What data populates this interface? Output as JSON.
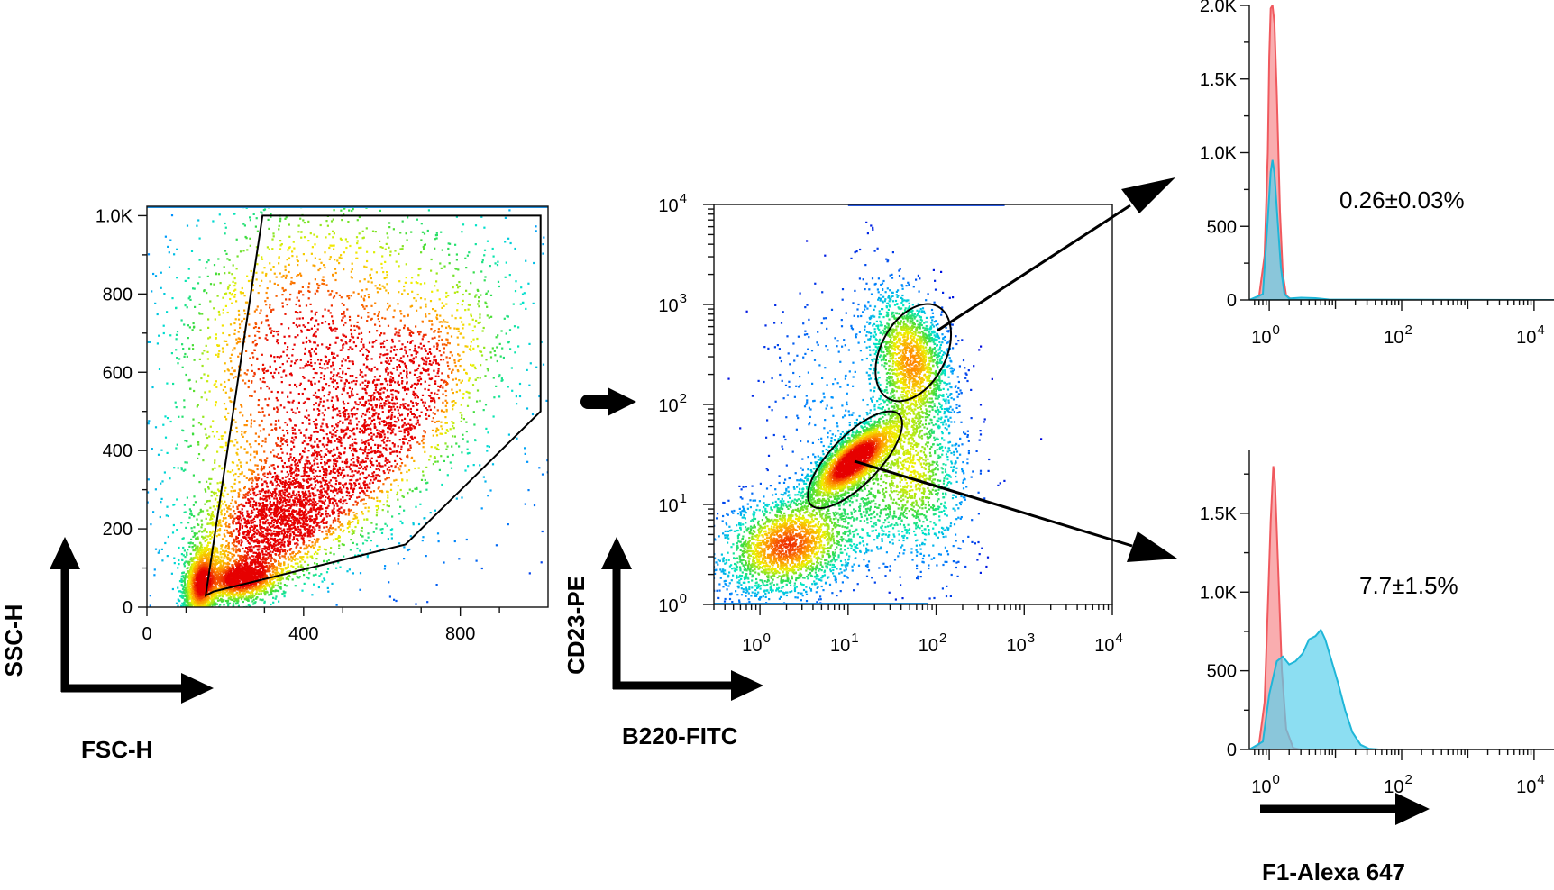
{
  "chart_data": [
    {
      "id": "scatter-fsc-ssc",
      "type": "scatter",
      "xlabel": "FSC-H",
      "ylabel": "SSC-H",
      "xlim": [
        0,
        1024
      ],
      "ylim": [
        0,
        1024
      ],
      "x_ticks": [
        {
          "value": 0,
          "label": "0"
        },
        {
          "value": 400,
          "label": "400"
        },
        {
          "value": 800,
          "label": "800"
        }
      ],
      "y_ticks": [
        {
          "value": 0,
          "label": "0"
        },
        {
          "value": 200,
          "label": "200"
        },
        {
          "value": 400,
          "label": "400"
        },
        {
          "value": 600,
          "label": "600"
        },
        {
          "value": 800,
          "label": "800"
        },
        {
          "value": 1000,
          "label": "1.0K"
        }
      ],
      "gate": [
        [
          150,
          30
        ],
        [
          295,
          1000
        ],
        [
          1005,
          1000
        ],
        [
          1005,
          500
        ],
        [
          660,
          160
        ],
        [
          170,
          40
        ]
      ],
      "density_clusters": [
        {
          "x": 135,
          "y": 60
        },
        {
          "x": 240,
          "y": 75
        },
        {
          "x": 320,
          "y": 230
        },
        {
          "x": 560,
          "y": 420
        },
        {
          "x": 380,
          "y": 700
        }
      ]
    },
    {
      "id": "scatter-b220-cd23",
      "type": "scatter",
      "xlabel": "B220-FITC",
      "ylabel": "CD23-PE",
      "xscale": "log",
      "yscale": "log",
      "xlim": [
        0.3,
        10000
      ],
      "ylim": [
        1,
        10000
      ],
      "x_ticks": [
        {
          "base": "10",
          "exp": "0",
          "value": 1
        },
        {
          "base": "10",
          "exp": "1",
          "value": 10
        },
        {
          "base": "10",
          "exp": "2",
          "value": 100
        },
        {
          "base": "10",
          "exp": "3",
          "value": 1000
        },
        {
          "base": "10",
          "exp": "4",
          "value": 10000
        }
      ],
      "y_ticks": [
        {
          "base": "10",
          "exp": "0",
          "value": 1
        },
        {
          "base": "10",
          "exp": "1",
          "value": 10
        },
        {
          "base": "10",
          "exp": "2",
          "value": 100
        },
        {
          "base": "10",
          "exp": "3",
          "value": 1000
        },
        {
          "base": "10",
          "exp": "4",
          "value": 10000
        }
      ],
      "gates": [
        {
          "name": "upper",
          "center": [
            55,
            330
          ]
        },
        {
          "name": "lower",
          "center": [
            12,
            28
          ]
        }
      ],
      "density_clusters": [
        {
          "x": 2,
          "y": 4
        },
        {
          "x": 12,
          "y": 30
        },
        {
          "x": 55,
          "y": 300
        }
      ]
    },
    {
      "id": "histogram-upper",
      "type": "area",
      "xscale": "log",
      "xlim": [
        0.5,
        20000
      ],
      "ylim": [
        0,
        2000
      ],
      "x_ticks": [
        {
          "base": "10",
          "exp": "0",
          "value": 1
        },
        {
          "base": "10",
          "exp": "2",
          "value": 100
        },
        {
          "base": "10",
          "exp": "4",
          "value": 10000
        }
      ],
      "y_ticks": [
        {
          "value": 0,
          "label": "0"
        },
        {
          "value": 500,
          "label": "500"
        },
        {
          "value": 1000,
          "label": "1.0K"
        },
        {
          "value": 1500,
          "label": "1.5K"
        },
        {
          "value": 2000,
          "label": "2.0K"
        }
      ],
      "annotation": "0.26±0.03%",
      "series": [
        {
          "color": "#f0595e",
          "fill": "#f9a9ab",
          "points": [
            [
              0.5,
              0
            ],
            [
              0.7,
              20
            ],
            [
              0.85,
              300
            ],
            [
              0.95,
              1000
            ],
            [
              1.0,
              1650
            ],
            [
              1.05,
              1980
            ],
            [
              1.12,
              2000
            ],
            [
              1.2,
              1880
            ],
            [
              1.3,
              1400
            ],
            [
              1.45,
              600
            ],
            [
              1.6,
              180
            ],
            [
              1.8,
              30
            ],
            [
              2.2,
              0
            ],
            [
              20000,
              0
            ]
          ]
        },
        {
          "color": "#1fb6d8",
          "fill": "#5bd0ec",
          "points": [
            [
              0.5,
              0
            ],
            [
              0.8,
              40
            ],
            [
              0.95,
              550
            ],
            [
              1.05,
              870
            ],
            [
              1.12,
              950
            ],
            [
              1.2,
              860
            ],
            [
              1.3,
              620
            ],
            [
              1.5,
              220
            ],
            [
              1.7,
              40
            ],
            [
              2.0,
              10
            ],
            [
              3,
              15
            ],
            [
              5,
              12
            ],
            [
              8,
              3
            ],
            [
              20000,
              0
            ]
          ]
        }
      ]
    },
    {
      "id": "histogram-lower",
      "type": "area",
      "xlabel": "F1-Alexa 647",
      "xscale": "log",
      "xlim": [
        0.5,
        20000
      ],
      "ylim": [
        0,
        1900
      ],
      "x_ticks": [
        {
          "base": "10",
          "exp": "0",
          "value": 1
        },
        {
          "base": "10",
          "exp": "2",
          "value": 100
        },
        {
          "base": "10",
          "exp": "4",
          "value": 10000
        }
      ],
      "y_ticks": [
        {
          "value": 0,
          "label": "0"
        },
        {
          "value": 500,
          "label": "500"
        },
        {
          "value": 1000,
          "label": "1.0K"
        },
        {
          "value": 1500,
          "label": "1.5K"
        }
      ],
      "annotation": "7.7±1.5%",
      "series": [
        {
          "color": "#f0595e",
          "fill": "#f9a9ab",
          "points": [
            [
              0.5,
              0
            ],
            [
              0.7,
              30
            ],
            [
              0.85,
              300
            ],
            [
              0.95,
              900
            ],
            [
              1.05,
              1450
            ],
            [
              1.15,
              1800
            ],
            [
              1.22,
              1700
            ],
            [
              1.35,
              1200
            ],
            [
              1.55,
              500
            ],
            [
              1.8,
              130
            ],
            [
              2.3,
              10
            ],
            [
              3,
              0
            ],
            [
              20000,
              0
            ]
          ]
        },
        {
          "color": "#1fb6d8",
          "fill": "#5bd0ec",
          "points": [
            [
              0.5,
              0
            ],
            [
              0.8,
              50
            ],
            [
              1.0,
              350
            ],
            [
              1.3,
              560
            ],
            [
              1.6,
              590
            ],
            [
              2.0,
              540
            ],
            [
              2.5,
              560
            ],
            [
              3.2,
              610
            ],
            [
              4.0,
              700
            ],
            [
              5.0,
              720
            ],
            [
              6.0,
              760
            ],
            [
              7.0,
              700
            ],
            [
              8.5,
              580
            ],
            [
              11,
              420
            ],
            [
              14,
              250
            ],
            [
              18,
              110
            ],
            [
              24,
              30
            ],
            [
              32,
              5
            ],
            [
              45,
              0
            ],
            [
              20000,
              0
            ]
          ]
        }
      ]
    }
  ]
}
